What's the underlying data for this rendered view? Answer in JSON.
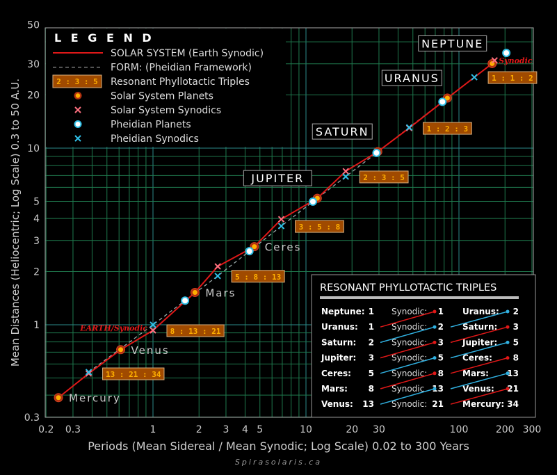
{
  "chart_data": {
    "type": "line",
    "xlabel": "Periods (Mean Sidereal / Mean Synodic; Log Scale) 0.02 to 300 Years",
    "ylabel": "Mean Distances (Heliocentric; Log Scale) 0.3 to 50 A.U.",
    "credit": "Spirasolaris.ca",
    "x_scale": "log",
    "y_scale": "log",
    "xlim": [
      0.2,
      300
    ],
    "ylim": [
      0.3,
      50
    ],
    "grid": true,
    "x_ticks": [
      "0.2",
      "0.3",
      "1",
      "2",
      "3",
      "4",
      "5",
      "10",
      "20",
      "30",
      "100",
      "200",
      "300"
    ],
    "y_ticks": [
      "0.3",
      "1",
      "2",
      "3",
      "4",
      "5",
      "10",
      "20",
      "30",
      "50"
    ],
    "colors": {
      "solar": "#e01818",
      "form": "#9aa8a8",
      "planet": "#ffb000",
      "solar_synodic": "#ff7080",
      "pheidian": "#30c0e8",
      "triple_box": "#a04a00",
      "triple_text": "#ffb000",
      "grid": "#1f7a4e"
    },
    "legend": {
      "title": "L E G E N D",
      "placement": "top-left",
      "items": [
        {
          "label": "SOLAR SYSTEM  (Earth Synodic)",
          "symbol": "red-line"
        },
        {
          "label": "FORM: (Pheidian Framework)",
          "symbol": "dashed-line"
        },
        {
          "label": "Resonant Phyllotactic Triples",
          "symbol": "triple-box",
          "sample": "2 : 3 : 5"
        },
        {
          "label": "Solar System Planets",
          "symbol": "orange-circle"
        },
        {
          "label": "Solar System Synodics",
          "symbol": "red-x"
        },
        {
          "label": "Pheidian Planets",
          "symbol": "cyan-circle"
        },
        {
          "label": "Pheidian Synodics",
          "symbol": "cyan-x"
        }
      ]
    },
    "series": [
      {
        "name": "SOLAR SYSTEM  (Earth Synodic)",
        "kind": "line",
        "points": [
          [
            0.241,
            0.387
          ],
          [
            0.38,
            0.53
          ],
          [
            0.615,
            0.723
          ],
          [
            1,
            0.93
          ],
          [
            1.881,
            1.524
          ],
          [
            2.65,
            2.14
          ],
          [
            4.6,
            2.77
          ],
          [
            6.9,
            3.96
          ],
          [
            11.86,
            5.2
          ],
          [
            18.2,
            7.4
          ],
          [
            29.46,
            9.55
          ],
          [
            47.3,
            13.0
          ],
          [
            84.0,
            19.2
          ],
          [
            164.8,
            30.1
          ],
          [
            171,
            31.4
          ]
        ]
      },
      {
        "name": "FORM: (Pheidian Framework)",
        "kind": "dashed",
        "points": [
          [
            0.38,
            0.54
          ],
          [
            1,
            1
          ],
          [
            1.62,
            1.37
          ],
          [
            2.65,
            1.89
          ],
          [
            4.27,
            2.61
          ],
          [
            6.9,
            3.62
          ],
          [
            11.1,
            4.98
          ],
          [
            18.2,
            6.9
          ],
          [
            28.9,
            9.4
          ],
          [
            47.3,
            13.1
          ],
          [
            78,
            18.3
          ],
          [
            126,
            25.2
          ]
        ]
      },
      {
        "name": "Solar System Planets",
        "kind": "planet",
        "points": [
          [
            0.241,
            0.387
          ],
          [
            0.615,
            0.723
          ],
          [
            1.881,
            1.524
          ],
          [
            4.6,
            2.77
          ],
          [
            11.86,
            5.2
          ],
          [
            29.46,
            9.55
          ],
          [
            84.0,
            19.2
          ],
          [
            164.8,
            30.1
          ]
        ]
      },
      {
        "name": "Solar System Synodics",
        "kind": "synodic",
        "points": [
          [
            0.38,
            0.53
          ],
          [
            1,
            0.93
          ],
          [
            2.65,
            2.14
          ],
          [
            6.9,
            3.96
          ],
          [
            18.2,
            7.4
          ],
          [
            47.3,
            13.0
          ],
          [
            171,
            31.4
          ]
        ]
      },
      {
        "name": "Pheidian Planets",
        "kind": "pheidian-planet",
        "points": [
          [
            1.62,
            1.37
          ],
          [
            4.27,
            2.61
          ],
          [
            11.1,
            4.98
          ],
          [
            28.9,
            9.4
          ],
          [
            78,
            18.3
          ],
          [
            204,
            34.6
          ]
        ]
      },
      {
        "name": "Pheidian Synodics",
        "kind": "pheidian-synodic",
        "points": [
          [
            0.38,
            0.54
          ],
          [
            1,
            1
          ],
          [
            2.65,
            1.89
          ],
          [
            6.9,
            3.62
          ],
          [
            18.2,
            6.9
          ],
          [
            47.3,
            13.1
          ],
          [
            126,
            25.2
          ]
        ]
      }
    ],
    "planet_labels": [
      {
        "text": "Mercury",
        "at": [
          0.241,
          0.387
        ],
        "boxed": false
      },
      {
        "text": "Venus",
        "at": [
          0.615,
          0.723
        ],
        "boxed": false
      },
      {
        "text": "Mars",
        "at": [
          1.881,
          1.524
        ],
        "boxed": false
      },
      {
        "text": "Ceres",
        "at": [
          4.6,
          2.77
        ],
        "boxed": false
      },
      {
        "text": "JUPITER",
        "at": [
          11.86,
          5.2
        ],
        "boxed": true
      },
      {
        "text": "SATURN",
        "at": [
          29.46,
          9.55
        ],
        "boxed": true
      },
      {
        "text": "URANUS",
        "at": [
          84.0,
          19.2
        ],
        "boxed": true
      },
      {
        "text": "NEPTUNE",
        "at": [
          164.8,
          30.1
        ],
        "boxed": true
      }
    ],
    "annotations": [
      {
        "text": "EARTH/Synodic",
        "at": [
          1,
          0.95
        ]
      },
      {
        "text": "Synodic",
        "at": [
          171,
          31.4
        ]
      }
    ],
    "triples": [
      {
        "text": "13 : 21 : 34",
        "at": [
          0.38,
          0.53
        ]
      },
      {
        "text": "8 : 13 : 21",
        "at": [
          1,
          0.93
        ]
      },
      {
        "text": "5 : 8 : 13",
        "at": [
          2.65,
          1.89
        ]
      },
      {
        "text": "3 : 5 : 8",
        "at": [
          6.9,
          3.62
        ]
      },
      {
        "text": "2 : 3 : 5",
        "at": [
          18.2,
          6.9
        ]
      },
      {
        "text": "1 : 2 : 3",
        "at": [
          47.3,
          13.0
        ]
      },
      {
        "text": "1 : 1 : 2",
        "at": [
          126,
          25.2
        ]
      }
    ],
    "table": {
      "title": "RESONANT PHYLLOTACTIC TRIPLES",
      "rows": [
        {
          "left": "Neptune:",
          "lv": "1",
          "mid": "Synodic:",
          "mv": "1",
          "right": "Uranus:",
          "rv": "2"
        },
        {
          "left": "Uranus:",
          "lv": "1",
          "mid": "Synodic:",
          "mv": "2",
          "right": "Saturn:",
          "rv": "3"
        },
        {
          "left": "Saturn:",
          "lv": "2",
          "mid": "Synodic:",
          "mv": "3",
          "right": "Jupiter:",
          "rv": "5"
        },
        {
          "left": "Jupiter:",
          "lv": "3",
          "mid": "Synodic:",
          "mv": "5",
          "right": "Ceres:",
          "rv": "8"
        },
        {
          "left": "Ceres:",
          "lv": "5",
          "mid": "Synodic:",
          "mv": "8",
          "right": "Mars:",
          "rv": "13"
        },
        {
          "left": "Mars:",
          "lv": "8",
          "mid": "Synodic",
          "mv": "13",
          "right": "Venus:",
          "rv": "21"
        },
        {
          "left": "Venus:",
          "lv": "13",
          "mid": "Synodic:",
          "mv": "21",
          "right": "Mercury:",
          "rv": "34"
        }
      ]
    }
  }
}
